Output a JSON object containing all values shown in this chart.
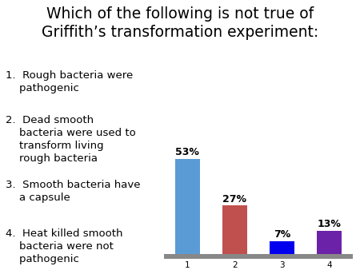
{
  "title_line1": "Which of the following is not true of",
  "title_line2": "Griffith’s transformation experiment:",
  "item_texts": [
    "1.  Rough bacteria were\n    pathogenic",
    "2.  Dead smooth\n    bacteria were used to\n    transform living\n    rough bacteria",
    "3.  Smooth bacteria have\n    a capsule",
    "4.  Heat killed smooth\n    bacteria were not\n    pathogenic"
  ],
  "categories": [
    "1",
    "2",
    "3",
    "4"
  ],
  "values": [
    53,
    27,
    7,
    13
  ],
  "bar_colors": [
    "#5B9BD5",
    "#C0504D",
    "#0000EE",
    "#6B21A8"
  ],
  "bar_labels": [
    "53%",
    "27%",
    "7%",
    "13%"
  ],
  "background_color": "#ffffff",
  "platform_color": "#888888",
  "title_fontsize": 13.5,
  "item_fontsize": 9.5,
  "bar_label_fontsize": 9,
  "tick_fontsize": 7.5
}
